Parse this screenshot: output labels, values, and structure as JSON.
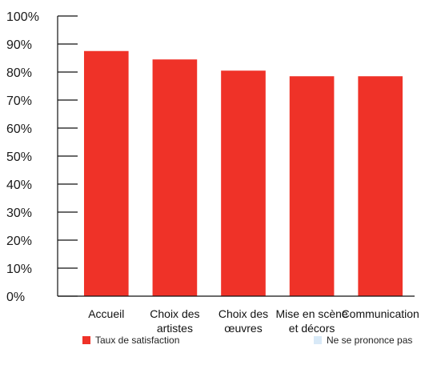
{
  "chart_data": {
    "type": "bar",
    "categories": [
      [
        "Accueil"
      ],
      [
        "Choix des",
        "artistes"
      ],
      [
        "Choix des",
        "œuvres"
      ],
      [
        "Mise en scène",
        "et décors"
      ],
      [
        "Communication"
      ]
    ],
    "series": [
      {
        "name": "Taux  de satisfaction",
        "color": "#ef3228",
        "values": [
          87.5,
          84.5,
          80.5,
          78.5,
          78.5
        ]
      },
      {
        "name": "Ne se prononce pas",
        "color": "#d8e9f7",
        "values": [
          0,
          0,
          0,
          0,
          0
        ]
      }
    ],
    "ylim": [
      0,
      100
    ],
    "yticks": [
      "0%",
      "10%",
      "20%",
      "30%",
      "40%",
      "50%",
      "60%",
      "70%",
      "80%",
      "90%",
      "100%"
    ],
    "grid": false,
    "legend_position": "bottom"
  }
}
